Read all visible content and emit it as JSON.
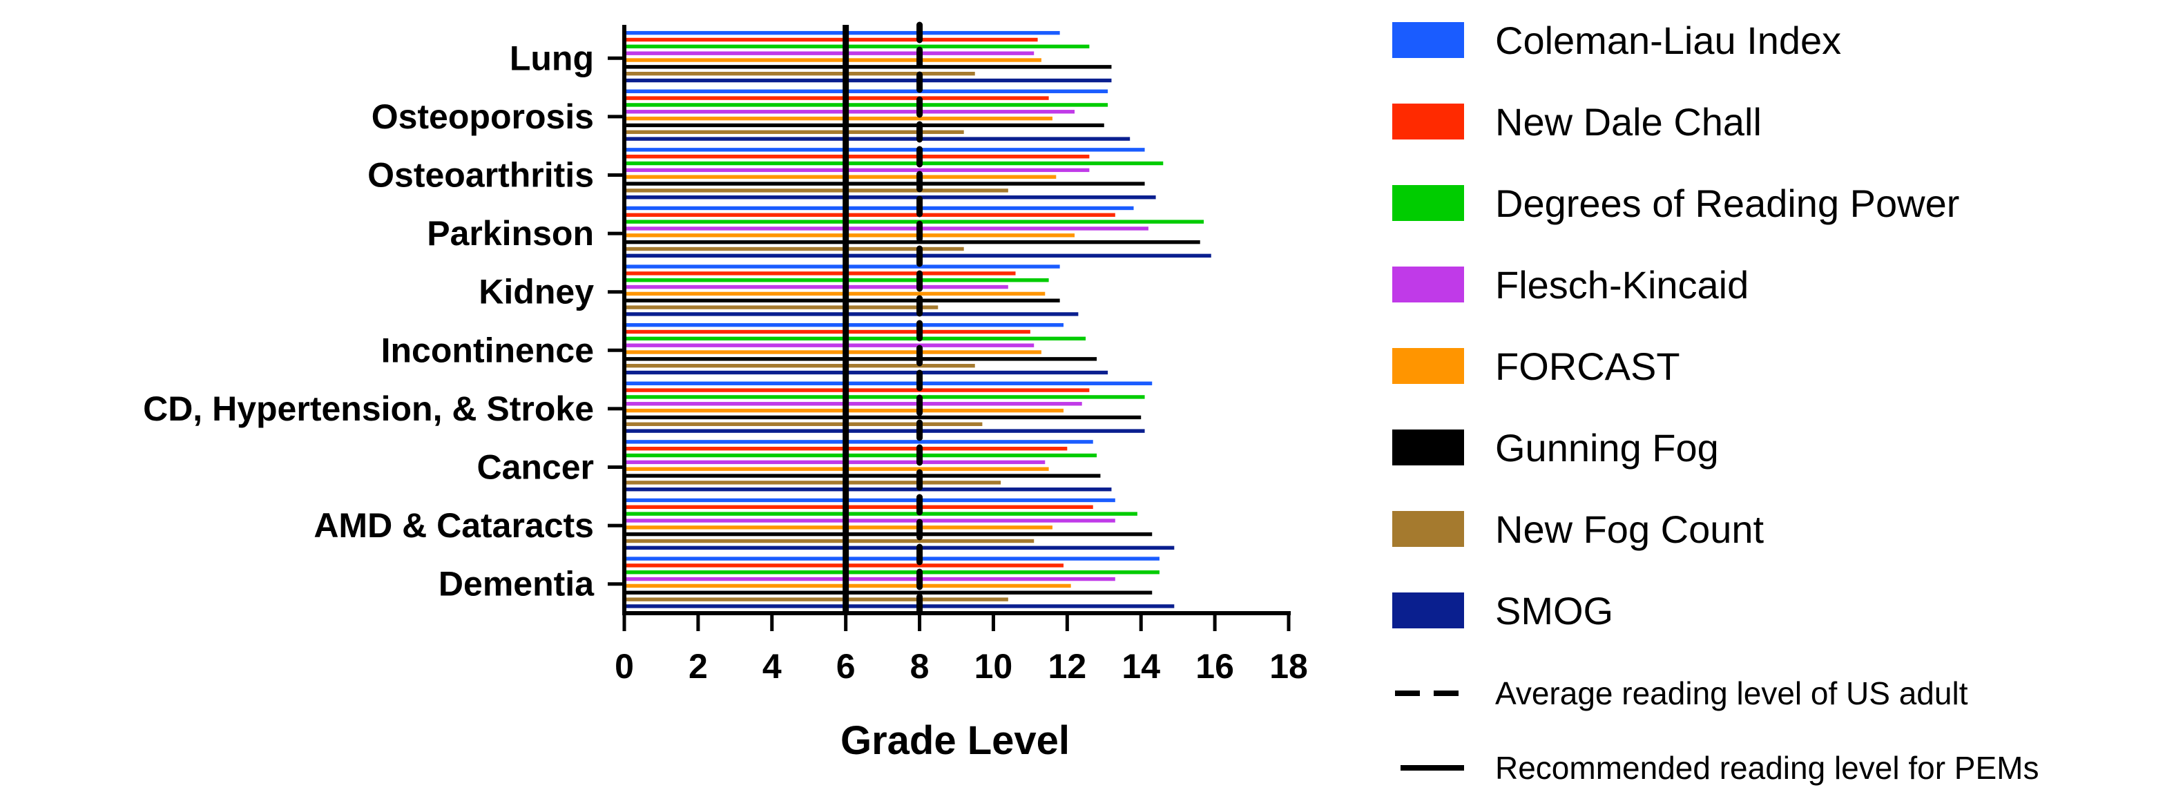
{
  "chart_data": {
    "type": "bar",
    "orientation": "horizontal",
    "title": "",
    "xlabel": "Grade Level",
    "ylabel": "",
    "xlim": [
      0,
      18
    ],
    "xticks": [
      "0",
      "2",
      "4",
      "6",
      "8",
      "10",
      "12",
      "14",
      "16",
      "18"
    ],
    "grid": false,
    "legend_position": "right",
    "categories": [
      "Lung",
      "Osteoporosis",
      "Osteoarthritis",
      "Parkinson",
      "Kidney",
      "Incontinence",
      "CD, Hypertension, & Stroke",
      "Cancer",
      "AMD & Cataracts",
      "Dementia"
    ],
    "series": [
      {
        "name": "Coleman-Liau Index",
        "color": "#1a5cff",
        "values": [
          11.8,
          13.1,
          14.1,
          13.8,
          11.8,
          11.9,
          14.3,
          12.7,
          13.3,
          14.5
        ]
      },
      {
        "name": "New Dale Chall",
        "color": "#ff2a00",
        "values": [
          11.2,
          11.5,
          12.6,
          13.3,
          10.6,
          11.0,
          12.6,
          12.0,
          12.7,
          11.9
        ]
      },
      {
        "name": "Degrees of Reading Power",
        "color": "#00cc00",
        "values": [
          12.6,
          13.1,
          14.6,
          15.7,
          11.5,
          12.5,
          14.1,
          12.8,
          13.9,
          14.5
        ]
      },
      {
        "name": "Flesch-Kincaid",
        "color": "#c03ae8",
        "values": [
          11.1,
          12.2,
          12.6,
          14.2,
          10.4,
          11.1,
          12.4,
          11.4,
          13.3,
          13.3
        ]
      },
      {
        "name": "FORCAST",
        "color": "#ff9500",
        "values": [
          11.3,
          11.6,
          11.7,
          12.2,
          11.4,
          11.3,
          11.9,
          11.5,
          11.6,
          12.1
        ]
      },
      {
        "name": "Gunning Fog",
        "color": "#000000",
        "values": [
          13.2,
          13.0,
          14.1,
          15.6,
          11.8,
          12.8,
          14.0,
          12.9,
          14.3,
          14.3
        ]
      },
      {
        "name": "New Fog Count",
        "color": "#a57a2e",
        "values": [
          9.5,
          9.2,
          10.4,
          9.2,
          8.5,
          9.5,
          9.7,
          10.2,
          11.1,
          10.4
        ]
      },
      {
        "name": "SMOG",
        "color": "#0a1f8f",
        "values": [
          13.2,
          13.7,
          14.4,
          15.9,
          12.3,
          13.1,
          14.1,
          13.2,
          14.9,
          14.9
        ]
      }
    ],
    "reference_lines": [
      {
        "name": "Average reading level of US adult",
        "value": 8,
        "style": "dashed"
      },
      {
        "name": "Recommended reading level for PEMs",
        "value": 6,
        "style": "solid"
      }
    ]
  }
}
